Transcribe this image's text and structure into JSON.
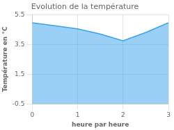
{
  "chart_data": {
    "type": "area",
    "title": "Evolution de la température",
    "xlabel": "heure par heure",
    "ylabel": "Température en °C",
    "x": [
      0,
      0.5,
      1.0,
      1.5,
      2.0,
      2.5,
      3.0
    ],
    "values": [
      4.95,
      4.75,
      4.55,
      4.2,
      3.75,
      4.3,
      4.95
    ],
    "xlim": [
      0,
      3
    ],
    "ylim": [
      -0.5,
      5.5
    ],
    "xticks": [
      0,
      1,
      2,
      3
    ],
    "yticks": [
      -0.5,
      1.5,
      3.5,
      5.5
    ],
    "grid": true
  }
}
